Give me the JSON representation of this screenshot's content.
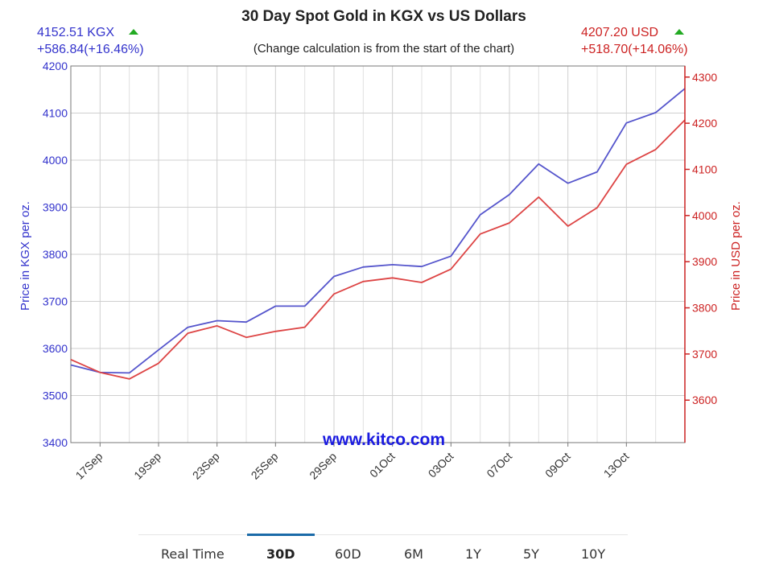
{
  "chart_data": {
    "type": "line",
    "title": "30 Day Spot Gold in KGX vs US Dollars",
    "subtitle": "(Change calculation is from the start of the chart)",
    "watermark": "www.kitco.com",
    "left_readout": {
      "price": "4152.51 KGX",
      "change": "+586.84(+16.46%)",
      "color": "#3333cc"
    },
    "right_readout": {
      "price": "4207.20 USD",
      "change": "+518.70(+14.06%)",
      "color": "#dd2222"
    },
    "up_arrow_color": "#22aa22",
    "x_tick_labels": [
      "17Sep",
      "19Sep",
      "23Sep",
      "25Sep",
      "29Sep",
      "01Oct",
      "03Oct",
      "07Oct",
      "09Oct",
      "13Oct"
    ],
    "y_left": {
      "label": "Price in KGX per oz.",
      "ticks": [
        3400,
        3500,
        3600,
        3700,
        3800,
        3900,
        4000,
        4100,
        4200
      ],
      "range": [
        3400,
        4200
      ],
      "color": "#3333cc"
    },
    "y_right": {
      "label": "Price in USD per oz.",
      "ticks": [
        3600,
        3700,
        3800,
        3900,
        4000,
        4100,
        4200,
        4300
      ],
      "range": [
        3508,
        4324
      ],
      "color": "#cc2222"
    },
    "series": [
      {
        "name": "KGX",
        "axis": "left",
        "color": "#5555cc",
        "values": [
          3565,
          3549,
          3548,
          3597,
          3645,
          3659,
          3656,
          3690,
          3690,
          3753,
          3773,
          3778,
          3774,
          3796,
          3884,
          3927,
          3992,
          3951,
          3975,
          4079,
          4101,
          4152
        ]
      },
      {
        "name": "USD",
        "axis": "right",
        "color": "#dd4444",
        "values": [
          3688,
          3660,
          3646,
          3680,
          3745,
          3761,
          3736,
          3749,
          3758,
          3830,
          3857,
          3865,
          3855,
          3884,
          3960,
          3984,
          4040,
          3977,
          4017,
          4111,
          4143,
          4207
        ]
      }
    ]
  },
  "tabs": {
    "items": [
      "Real Time",
      "30D",
      "60D",
      "6M",
      "1Y",
      "5Y",
      "10Y"
    ],
    "active": "30D"
  }
}
